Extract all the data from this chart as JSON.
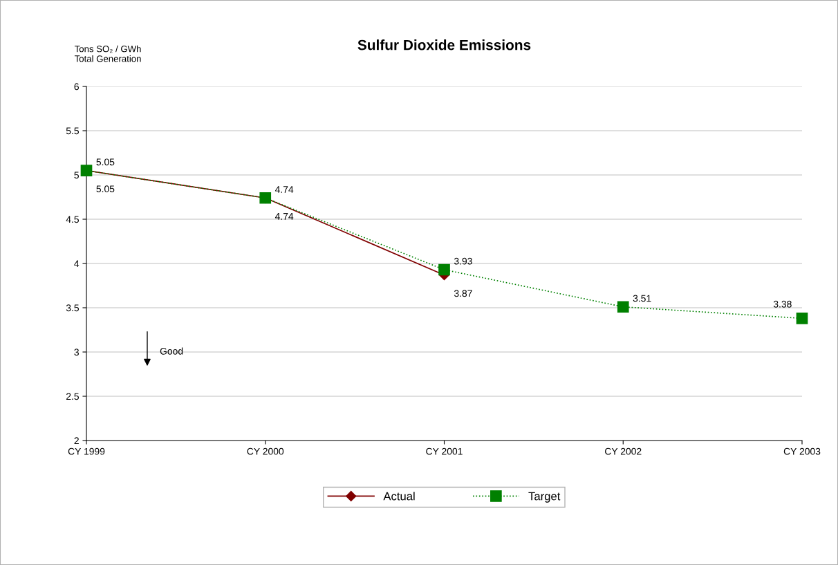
{
  "chart_data": {
    "type": "line",
    "title": "Sulfur Dioxide Emissions",
    "ylabel": "Tons SO₂ / GWh\nTotal Generation",
    "categories": [
      "CY 1999",
      "CY 2000",
      "CY 2001",
      "CY 2002",
      "CY 2003"
    ],
    "series": [
      {
        "name": "Actual",
        "color": "#800000",
        "marker": "diamond",
        "line_style": "solid",
        "values": [
          5.05,
          4.74,
          3.87,
          null,
          null
        ]
      },
      {
        "name": "Target",
        "color": "#008000",
        "marker": "square",
        "line_style": "dotted",
        "values": [
          5.05,
          4.74,
          3.93,
          3.51,
          3.38
        ]
      }
    ],
    "ylim": [
      2,
      6
    ],
    "yticks": [
      2,
      2.5,
      3,
      3.5,
      4,
      4.5,
      5,
      5.5,
      6
    ],
    "grid": "y",
    "legend": "bottom",
    "data_labels": true,
    "annotations": [
      "Good"
    ]
  }
}
